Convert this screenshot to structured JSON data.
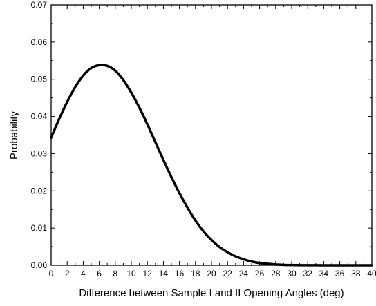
{
  "chart_data": {
    "type": "line",
    "xlabel": "Difference between Sample I and II Opening Angles (deg)",
    "ylabel": "Probability",
    "xlim": [
      0,
      40
    ],
    "ylim": [
      0,
      0.07
    ],
    "x_ticks": [
      0,
      2,
      4,
      6,
      8,
      10,
      12,
      14,
      16,
      18,
      20,
      22,
      24,
      26,
      28,
      30,
      32,
      34,
      36,
      38,
      40
    ],
    "x_tick_labels": [
      "0",
      "2",
      "4",
      "6",
      "8",
      "10",
      "12",
      "14",
      "16",
      "18",
      "20",
      "22",
      "24",
      "26",
      "28",
      "30",
      "32",
      "34",
      "36",
      "38",
      "40"
    ],
    "y_ticks": [
      0,
      0.01,
      0.02,
      0.03,
      0.04,
      0.05,
      0.06,
      0.07
    ],
    "y_tick_labels": [
      "0.00",
      "0.01",
      "0.02",
      "0.03",
      "0.04",
      "0.05",
      "0.06",
      "0.07"
    ],
    "grid": false,
    "series": [
      {
        "color": "#000000",
        "x": [
          0,
          1,
          2,
          3,
          4,
          5,
          6,
          7,
          8,
          9,
          10,
          11,
          12,
          13,
          14,
          15,
          16,
          17,
          18,
          19,
          20,
          21,
          22,
          23,
          24,
          25,
          26,
          27,
          28,
          29,
          30,
          32,
          34,
          36,
          38,
          40
        ],
        "values": [
          0.0343,
          0.0393,
          0.0439,
          0.0479,
          0.051,
          0.053,
          0.0538,
          0.0536,
          0.0523,
          0.0498,
          0.0464,
          0.0424,
          0.0379,
          0.0331,
          0.0283,
          0.0237,
          0.0194,
          0.0155,
          0.012,
          0.0091,
          0.0068,
          0.0049,
          0.0035,
          0.0024,
          0.0016,
          0.001,
          0.0006,
          0.0004,
          0.0002,
          0.0001,
          6e-05,
          2e-05,
          1e-05,
          0.0,
          0.0,
          0.0
        ]
      }
    ]
  }
}
